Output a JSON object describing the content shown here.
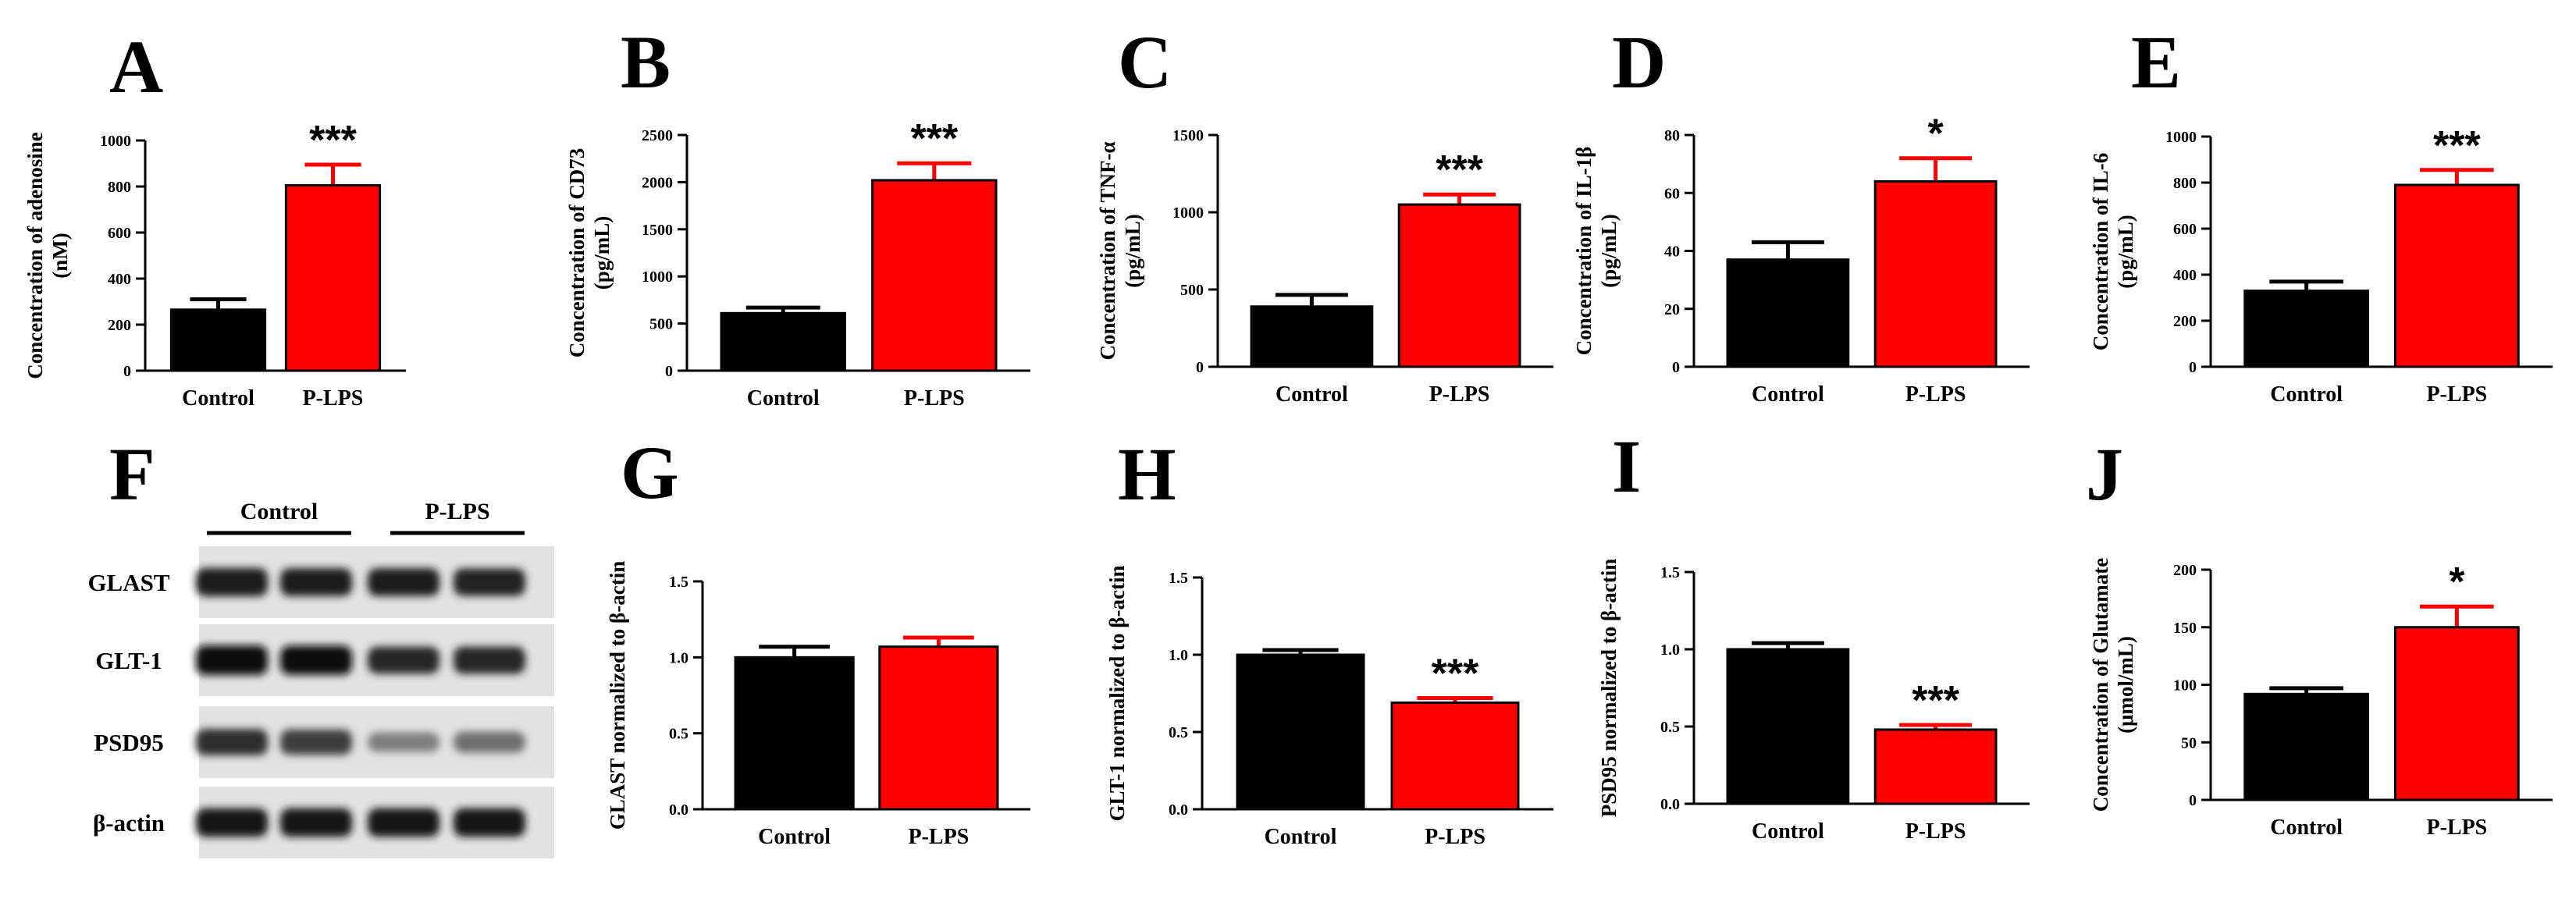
{
  "colors": {
    "control": "#000000",
    "treatment": "#ff0000"
  },
  "chart_data": [
    {
      "id": "A",
      "type": "bar",
      "letter": "A",
      "ylabel": [
        "Concentration of adenosine",
        "(nM)"
      ],
      "ylim": [
        0,
        1000
      ],
      "ticks": [
        0,
        200,
        400,
        600,
        800,
        1000
      ],
      "tick_labels": [
        "0",
        "200",
        "400",
        "600",
        "800",
        "1000"
      ],
      "categories": [
        "Control",
        "P-LPS"
      ],
      "values": [
        265,
        805
      ],
      "errors": [
        45,
        90
      ],
      "significance": "***"
    },
    {
      "id": "B",
      "type": "bar",
      "letter": "B",
      "ylabel": [
        "Concentration of CD73",
        "(pg/mL)"
      ],
      "ylim": [
        0,
        2500
      ],
      "ticks": [
        0,
        500,
        1000,
        1500,
        2000,
        2500
      ],
      "tick_labels": [
        "0",
        "500",
        "1000",
        "1500",
        "2000",
        "2500"
      ],
      "categories": [
        "Control",
        "P-LPS"
      ],
      "values": [
        610,
        2020
      ],
      "errors": [
        60,
        180
      ],
      "significance": "***"
    },
    {
      "id": "C",
      "type": "bar",
      "letter": "C",
      "ylabel": [
        "Concentration of TNF-α",
        "(pg/mL)"
      ],
      "ylim": [
        0,
        1500
      ],
      "ticks": [
        0,
        500,
        1000,
        1500
      ],
      "tick_labels": [
        "0",
        "500",
        "1000",
        "1500"
      ],
      "categories": [
        "Control",
        "P-LPS"
      ],
      "values": [
        390,
        1050
      ],
      "errors": [
        75,
        65
      ],
      "significance": "***"
    },
    {
      "id": "D",
      "type": "bar",
      "letter": "D",
      "ylabel": [
        "Concentration of IL-1β",
        "(pg/mL)"
      ],
      "ylim": [
        0,
        80
      ],
      "ticks": [
        0,
        20,
        40,
        60,
        80
      ],
      "tick_labels": [
        "0",
        "20",
        "40",
        "60",
        "80"
      ],
      "categories": [
        "Control",
        "P-LPS"
      ],
      "values": [
        37,
        64
      ],
      "errors": [
        6,
        8
      ],
      "significance": "*"
    },
    {
      "id": "E",
      "type": "bar",
      "letter": "E",
      "ylabel": [
        "Concentration of IL-6",
        "(pg/mL)"
      ],
      "ylim": [
        0,
        1000
      ],
      "ticks": [
        0,
        200,
        400,
        600,
        800,
        1000
      ],
      "tick_labels": [
        "0",
        "200",
        "400",
        "600",
        "800",
        "1000"
      ],
      "categories": [
        "Control",
        "P-LPS"
      ],
      "values": [
        330,
        790
      ],
      "errors": [
        40,
        65
      ],
      "significance": "***"
    },
    {
      "id": "G",
      "type": "bar",
      "letter": "G",
      "ylabel": [
        "GLAST normalized to β-actin"
      ],
      "ylim": [
        0,
        1.5
      ],
      "ticks": [
        0,
        0.5,
        1.0,
        1.5
      ],
      "tick_labels": [
        "0.0",
        "0.5",
        "1.0",
        "1.5"
      ],
      "categories": [
        "Control",
        "P-LPS"
      ],
      "values": [
        1.0,
        1.07
      ],
      "errors": [
        0.07,
        0.06
      ],
      "significance": ""
    },
    {
      "id": "H",
      "type": "bar",
      "letter": "H",
      "ylabel": [
        "GLT-1 normalized to β-actin"
      ],
      "ylim": [
        0,
        1.5
      ],
      "ticks": [
        0,
        0.5,
        1.0,
        1.5
      ],
      "tick_labels": [
        "0.0",
        "0.5",
        "1.0",
        "1.5"
      ],
      "categories": [
        "Control",
        "P-LPS"
      ],
      "values": [
        1.0,
        0.69
      ],
      "errors": [
        0.03,
        0.03
      ],
      "significance": "***"
    },
    {
      "id": "I",
      "type": "bar",
      "letter": "I",
      "ylabel": [
        "PSD95 normalized to β-actin"
      ],
      "ylim": [
        0,
        1.5
      ],
      "ticks": [
        0,
        0.5,
        1.0,
        1.5
      ],
      "tick_labels": [
        "0.0",
        "0.5",
        "1.0",
        "1.5"
      ],
      "categories": [
        "Control",
        "P-LPS"
      ],
      "values": [
        1.0,
        0.48
      ],
      "errors": [
        0.04,
        0.03
      ],
      "significance": "***"
    },
    {
      "id": "J",
      "type": "bar",
      "letter": "J",
      "ylabel": [
        "Concentration of Glutamate",
        "(μmol/mL)"
      ],
      "ylim": [
        0,
        200
      ],
      "ticks": [
        0,
        50,
        100,
        150,
        200
      ],
      "tick_labels": [
        "0",
        "50",
        "100",
        "150",
        "200"
      ],
      "categories": [
        "Control",
        "P-LPS"
      ],
      "values": [
        92,
        150
      ],
      "errors": [
        5,
        18
      ],
      "significance": "*"
    }
  ],
  "western_blot": {
    "letter": "F",
    "groups": [
      "Control",
      "P-LPS"
    ],
    "proteins": [
      "GLAST",
      "GLT-1",
      "PSD95",
      "β-actin"
    ],
    "band_intensity": [
      [
        0.92,
        0.9,
        0.9,
        0.88
      ],
      [
        1.0,
        0.98,
        0.85,
        0.86
      ],
      [
        0.82,
        0.75,
        0.42,
        0.5
      ],
      [
        0.93,
        0.93,
        0.93,
        0.93
      ]
    ]
  }
}
